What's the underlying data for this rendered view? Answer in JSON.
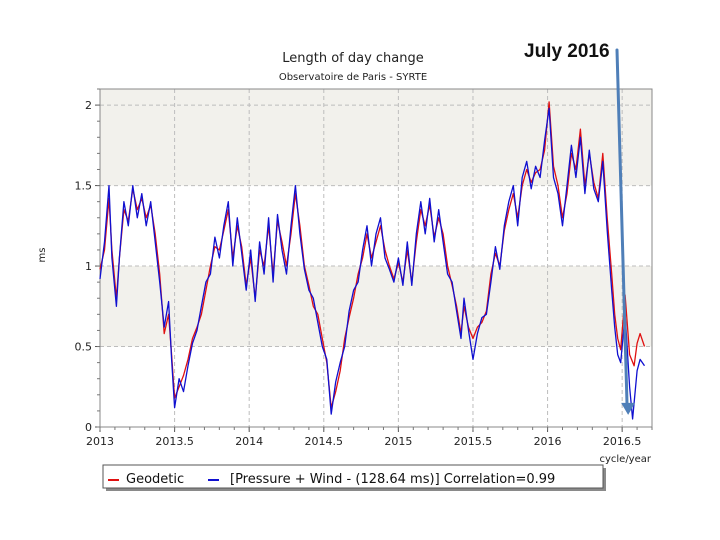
{
  "chart_data": {
    "type": "line",
    "title": "Length of day change",
    "subtitle": "Observatoire de Paris - SYRTE",
    "ylabel": "ms",
    "xlabel": "cycle/year",
    "xlim": [
      2013,
      2016.7
    ],
    "ylim": [
      0,
      2.1
    ],
    "x_ticks": [
      2013,
      2013.5,
      2014,
      2014.5,
      2015,
      2015.5,
      2016,
      2016.5
    ],
    "x_tick_labels": [
      "2013",
      "2013.5",
      "2014",
      "2014.5",
      "2015",
      "2015.5",
      "2016",
      "2016.5"
    ],
    "y_ticks": [
      0,
      0.5,
      1,
      1.5,
      2
    ],
    "y_tick_labels": [
      "0",
      "0.5",
      "1",
      "1.5",
      "2"
    ],
    "grid": true,
    "legend_position": "bottom",
    "annotation": {
      "text": "July 2016",
      "x": 2016.54,
      "y": 0.1
    },
    "series": [
      {
        "name": "Geodetic",
        "color": "#e01010",
        "points": [
          [
            2013.0,
            0.98
          ],
          [
            2013.03,
            1.1
          ],
          [
            2013.06,
            1.42
          ],
          [
            2013.08,
            1.1
          ],
          [
            2013.11,
            0.8
          ],
          [
            2013.13,
            1.05
          ],
          [
            2013.16,
            1.35
          ],
          [
            2013.19,
            1.28
          ],
          [
            2013.22,
            1.48
          ],
          [
            2013.25,
            1.35
          ],
          [
            2013.28,
            1.42
          ],
          [
            2013.31,
            1.3
          ],
          [
            2013.34,
            1.38
          ],
          [
            2013.37,
            1.2
          ],
          [
            2013.4,
            0.95
          ],
          [
            2013.43,
            0.58
          ],
          [
            2013.46,
            0.7
          ],
          [
            2013.48,
            0.45
          ],
          [
            2013.5,
            0.18
          ],
          [
            2013.53,
            0.25
          ],
          [
            2013.56,
            0.32
          ],
          [
            2013.59,
            0.42
          ],
          [
            2013.62,
            0.55
          ],
          [
            2013.65,
            0.62
          ],
          [
            2013.68,
            0.7
          ],
          [
            2013.71,
            0.85
          ],
          [
            2013.74,
            1.0
          ],
          [
            2013.77,
            1.12
          ],
          [
            2013.8,
            1.1
          ],
          [
            2013.83,
            1.22
          ],
          [
            2013.86,
            1.35
          ],
          [
            2013.89,
            1.05
          ],
          [
            2013.92,
            1.25
          ],
          [
            2013.95,
            1.12
          ],
          [
            2013.98,
            0.88
          ],
          [
            2014.01,
            1.05
          ],
          [
            2014.04,
            0.8
          ],
          [
            2014.07,
            1.1
          ],
          [
            2014.1,
            1.0
          ],
          [
            2014.13,
            1.25
          ],
          [
            2014.16,
            0.95
          ],
          [
            2014.19,
            1.28
          ],
          [
            2014.22,
            1.15
          ],
          [
            2014.25,
            1.0
          ],
          [
            2014.28,
            1.2
          ],
          [
            2014.31,
            1.45
          ],
          [
            2014.34,
            1.25
          ],
          [
            2014.37,
            1.0
          ],
          [
            2014.4,
            0.88
          ],
          [
            2014.43,
            0.75
          ],
          [
            2014.46,
            0.7
          ],
          [
            2014.49,
            0.55
          ],
          [
            2014.52,
            0.4
          ],
          [
            2014.55,
            0.12
          ],
          [
            2014.58,
            0.22
          ],
          [
            2014.61,
            0.35
          ],
          [
            2014.64,
            0.55
          ],
          [
            2014.67,
            0.68
          ],
          [
            2014.7,
            0.8
          ],
          [
            2014.73,
            0.95
          ],
          [
            2014.76,
            1.05
          ],
          [
            2014.79,
            1.2
          ],
          [
            2014.82,
            1.05
          ],
          [
            2014.85,
            1.15
          ],
          [
            2014.88,
            1.25
          ],
          [
            2014.91,
            1.1
          ],
          [
            2014.94,
            1.0
          ],
          [
            2014.97,
            0.92
          ],
          [
            2015.0,
            1.02
          ],
          [
            2015.03,
            0.9
          ],
          [
            2015.06,
            1.1
          ],
          [
            2015.09,
            0.9
          ],
          [
            2015.12,
            1.15
          ],
          [
            2015.15,
            1.35
          ],
          [
            2015.18,
            1.25
          ],
          [
            2015.21,
            1.38
          ],
          [
            2015.24,
            1.18
          ],
          [
            2015.27,
            1.3
          ],
          [
            2015.3,
            1.2
          ],
          [
            2015.33,
            1.0
          ],
          [
            2015.36,
            0.88
          ],
          [
            2015.39,
            0.75
          ],
          [
            2015.42,
            0.58
          ],
          [
            2015.44,
            0.75
          ],
          [
            2015.47,
            0.62
          ],
          [
            2015.5,
            0.55
          ],
          [
            2015.53,
            0.62
          ],
          [
            2015.56,
            0.65
          ],
          [
            2015.59,
            0.72
          ],
          [
            2015.62,
            0.95
          ],
          [
            2015.65,
            1.08
          ],
          [
            2015.68,
            1.0
          ],
          [
            2015.71,
            1.22
          ],
          [
            2015.74,
            1.35
          ],
          [
            2015.77,
            1.45
          ],
          [
            2015.8,
            1.3
          ],
          [
            2015.83,
            1.5
          ],
          [
            2015.86,
            1.6
          ],
          [
            2015.89,
            1.52
          ],
          [
            2015.92,
            1.58
          ],
          [
            2015.95,
            1.6
          ],
          [
            2015.98,
            1.72
          ],
          [
            2016.01,
            2.02
          ],
          [
            2016.04,
            1.62
          ],
          [
            2016.07,
            1.5
          ],
          [
            2016.1,
            1.3
          ],
          [
            2016.13,
            1.45
          ],
          [
            2016.16,
            1.7
          ],
          [
            2016.19,
            1.6
          ],
          [
            2016.22,
            1.85
          ],
          [
            2016.25,
            1.5
          ],
          [
            2016.28,
            1.7
          ],
          [
            2016.31,
            1.52
          ],
          [
            2016.34,
            1.42
          ],
          [
            2016.37,
            1.7
          ],
          [
            2016.4,
            1.3
          ],
          [
            2016.43,
            0.95
          ],
          [
            2016.45,
            0.7
          ],
          [
            2016.47,
            0.55
          ],
          [
            2016.49,
            0.48
          ],
          [
            2016.52,
            0.82
          ],
          [
            2016.55,
            0.45
          ],
          [
            2016.58,
            0.38
          ],
          [
            2016.6,
            0.52
          ],
          [
            2016.62,
            0.58
          ],
          [
            2016.65,
            0.5
          ]
        ]
      },
      {
        "name": "[Pressure + Wind - (128.64 ms)] Correlation=0.99",
        "color": "#1010d0",
        "points": [
          [
            2013.0,
            0.92
          ],
          [
            2013.03,
            1.15
          ],
          [
            2013.06,
            1.5
          ],
          [
            2013.08,
            1.05
          ],
          [
            2013.11,
            0.75
          ],
          [
            2013.13,
            1.05
          ],
          [
            2013.16,
            1.4
          ],
          [
            2013.19,
            1.25
          ],
          [
            2013.22,
            1.5
          ],
          [
            2013.25,
            1.3
          ],
          [
            2013.28,
            1.45
          ],
          [
            2013.31,
            1.25
          ],
          [
            2013.34,
            1.4
          ],
          [
            2013.37,
            1.15
          ],
          [
            2013.4,
            0.9
          ],
          [
            2013.43,
            0.62
          ],
          [
            2013.46,
            0.78
          ],
          [
            2013.48,
            0.42
          ],
          [
            2013.5,
            0.12
          ],
          [
            2013.53,
            0.3
          ],
          [
            2013.56,
            0.22
          ],
          [
            2013.59,
            0.38
          ],
          [
            2013.62,
            0.52
          ],
          [
            2013.65,
            0.6
          ],
          [
            2013.68,
            0.75
          ],
          [
            2013.71,
            0.9
          ],
          [
            2013.74,
            0.95
          ],
          [
            2013.77,
            1.18
          ],
          [
            2013.8,
            1.05
          ],
          [
            2013.83,
            1.25
          ],
          [
            2013.86,
            1.4
          ],
          [
            2013.89,
            1.0
          ],
          [
            2013.92,
            1.3
          ],
          [
            2013.95,
            1.08
          ],
          [
            2013.98,
            0.85
          ],
          [
            2014.01,
            1.1
          ],
          [
            2014.04,
            0.78
          ],
          [
            2014.07,
            1.15
          ],
          [
            2014.1,
            0.95
          ],
          [
            2014.13,
            1.3
          ],
          [
            2014.16,
            0.9
          ],
          [
            2014.19,
            1.32
          ],
          [
            2014.22,
            1.1
          ],
          [
            2014.25,
            0.95
          ],
          [
            2014.28,
            1.25
          ],
          [
            2014.31,
            1.5
          ],
          [
            2014.34,
            1.2
          ],
          [
            2014.37,
            0.98
          ],
          [
            2014.4,
            0.85
          ],
          [
            2014.43,
            0.8
          ],
          [
            2014.46,
            0.65
          ],
          [
            2014.49,
            0.5
          ],
          [
            2014.52,
            0.42
          ],
          [
            2014.55,
            0.08
          ],
          [
            2014.58,
            0.28
          ],
          [
            2014.61,
            0.4
          ],
          [
            2014.64,
            0.5
          ],
          [
            2014.67,
            0.72
          ],
          [
            2014.7,
            0.85
          ],
          [
            2014.73,
            0.9
          ],
          [
            2014.76,
            1.1
          ],
          [
            2014.79,
            1.25
          ],
          [
            2014.82,
            1.0
          ],
          [
            2014.85,
            1.2
          ],
          [
            2014.88,
            1.3
          ],
          [
            2014.91,
            1.05
          ],
          [
            2014.94,
            0.98
          ],
          [
            2014.97,
            0.9
          ],
          [
            2015.0,
            1.05
          ],
          [
            2015.03,
            0.88
          ],
          [
            2015.06,
            1.15
          ],
          [
            2015.09,
            0.88
          ],
          [
            2015.12,
            1.2
          ],
          [
            2015.15,
            1.4
          ],
          [
            2015.18,
            1.2
          ],
          [
            2015.21,
            1.42
          ],
          [
            2015.24,
            1.15
          ],
          [
            2015.27,
            1.35
          ],
          [
            2015.3,
            1.15
          ],
          [
            2015.33,
            0.95
          ],
          [
            2015.36,
            0.9
          ],
          [
            2015.39,
            0.72
          ],
          [
            2015.42,
            0.55
          ],
          [
            2015.44,
            0.8
          ],
          [
            2015.47,
            0.6
          ],
          [
            2015.5,
            0.42
          ],
          [
            2015.53,
            0.58
          ],
          [
            2015.56,
            0.68
          ],
          [
            2015.59,
            0.7
          ],
          [
            2015.62,
            0.9
          ],
          [
            2015.65,
            1.12
          ],
          [
            2015.68,
            0.98
          ],
          [
            2015.71,
            1.25
          ],
          [
            2015.74,
            1.4
          ],
          [
            2015.77,
            1.5
          ],
          [
            2015.8,
            1.25
          ],
          [
            2015.83,
            1.55
          ],
          [
            2015.86,
            1.65
          ],
          [
            2015.89,
            1.48
          ],
          [
            2015.92,
            1.62
          ],
          [
            2015.95,
            1.55
          ],
          [
            2015.98,
            1.78
          ],
          [
            2016.01,
            1.98
          ],
          [
            2016.04,
            1.55
          ],
          [
            2016.07,
            1.45
          ],
          [
            2016.1,
            1.25
          ],
          [
            2016.13,
            1.5
          ],
          [
            2016.16,
            1.75
          ],
          [
            2016.19,
            1.55
          ],
          [
            2016.22,
            1.8
          ],
          [
            2016.25,
            1.45
          ],
          [
            2016.28,
            1.72
          ],
          [
            2016.31,
            1.48
          ],
          [
            2016.34,
            1.4
          ],
          [
            2016.37,
            1.65
          ],
          [
            2016.4,
            1.22
          ],
          [
            2016.43,
            0.85
          ],
          [
            2016.45,
            0.62
          ],
          [
            2016.47,
            0.45
          ],
          [
            2016.49,
            0.4
          ],
          [
            2016.52,
            0.7
          ],
          [
            2016.55,
            0.25
          ],
          [
            2016.57,
            0.05
          ],
          [
            2016.6,
            0.35
          ],
          [
            2016.62,
            0.42
          ],
          [
            2016.65,
            0.38
          ]
        ]
      }
    ]
  }
}
